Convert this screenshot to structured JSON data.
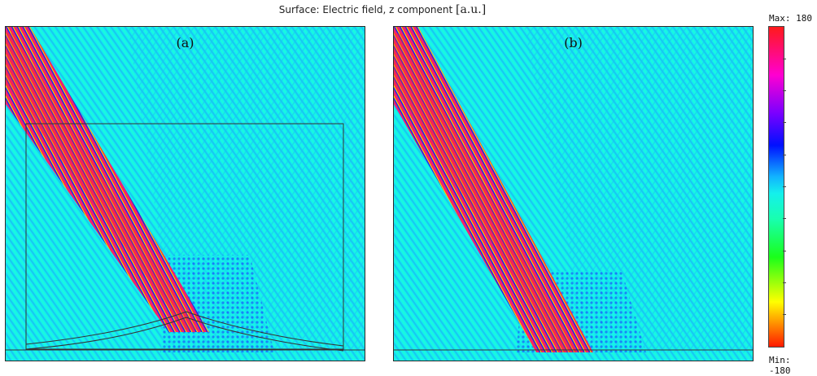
{
  "figure": {
    "title_main": "Surface: Electric field, z component",
    "title_unit": "[a.u.]"
  },
  "panels": [
    {
      "label": "(a)"
    },
    {
      "label": "(b)"
    }
  ],
  "colorbar": {
    "max_label": "Max: 180",
    "min_label": "Min: -180",
    "max_value": 180,
    "min_value": -180,
    "colors": [
      "#ff1a1a",
      "#ff00d0",
      "#7a00ff",
      "#0010ff",
      "#12b5ff",
      "#14f0ec",
      "#18ffb0",
      "#1aff1a",
      "#ffff00",
      "#ff1a00"
    ]
  }
}
